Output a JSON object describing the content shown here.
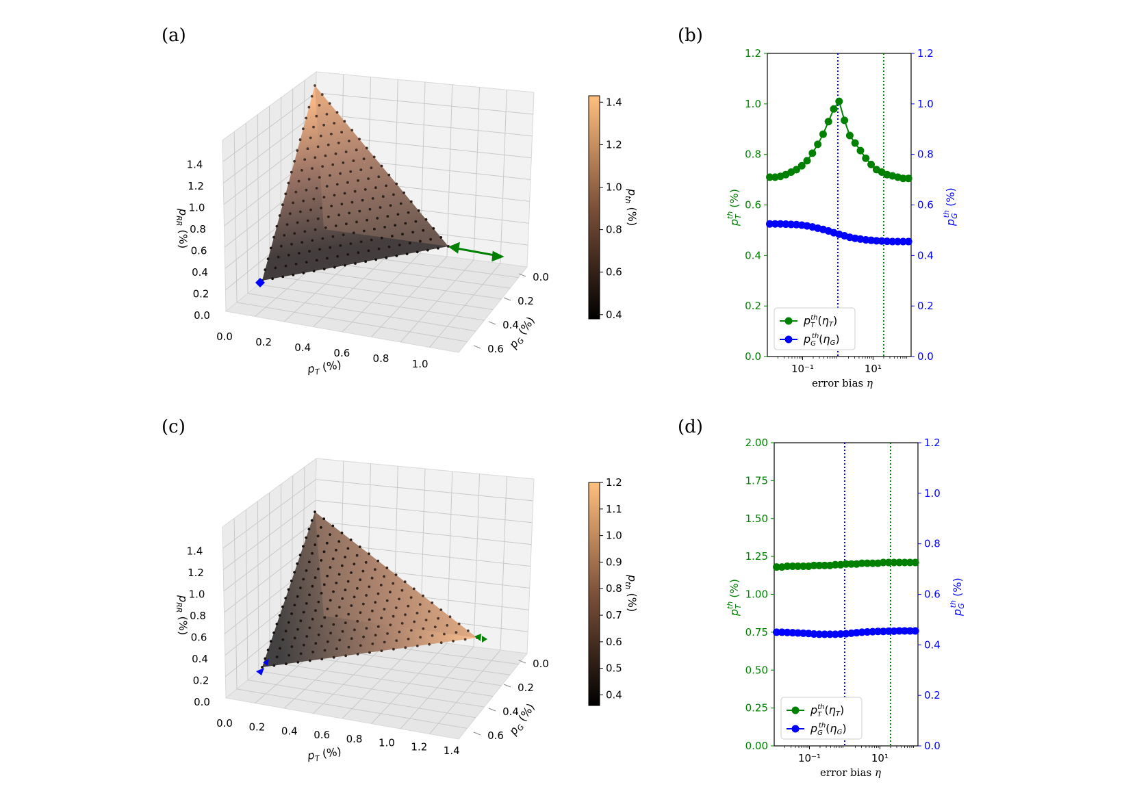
{
  "figure": {
    "panels": [
      {
        "label": "(a)"
      },
      {
        "label": "(b)"
      },
      {
        "label": "(c)"
      },
      {
        "label": "(d)"
      }
    ]
  },
  "chart_data": [
    {
      "panel": "(a)",
      "type": "scatter",
      "title": "",
      "subtype": "3d-surface-scatter",
      "xlabel": "p_T (%)",
      "ylabel": "p_G (%)",
      "zlabel": "p_RR (%)",
      "x_ticks": [
        "0.0",
        "0.2",
        "0.4",
        "0.6",
        "0.8",
        "1.0"
      ],
      "y_ticks": [
        "0.0",
        "0.2",
        "0.4",
        "0.6"
      ],
      "z_ticks": [
        "0.0",
        "0.2",
        "0.4",
        "0.6",
        "0.8",
        "1.0",
        "1.2",
        "1.4"
      ],
      "xlim": [
        0,
        1.1
      ],
      "ylim": [
        0,
        0.7
      ],
      "zlim": [
        0,
        1.55
      ],
      "vertices": {
        "p_T_intercept": [
          1.05,
          0.0,
          0.0
        ],
        "p_G_intercept": [
          0.0,
          0.45,
          0.0
        ],
        "p_RR_intercept": [
          0.0,
          0.0,
          1.45
        ]
      },
      "colorbar": {
        "label": "p_th (%)",
        "ticks": [
          "0.4",
          "0.6",
          "0.8",
          "1.0",
          "1.2",
          "1.4"
        ],
        "range": [
          0.38,
          1.43
        ],
        "colormap": "copper"
      },
      "markers": [
        {
          "name": "blue-marker",
          "color": "#0000ff"
        },
        {
          "name": "green-double-arrow",
          "color": "#008000"
        }
      ]
    },
    {
      "panel": "(b)",
      "type": "line",
      "title": "",
      "xlabel": "error bias η",
      "xscale": "log",
      "xlim": [
        0.01,
        120
      ],
      "x_ticks": [
        {
          "value": 0.1,
          "label": "10⁻¹"
        },
        {
          "value": 10,
          "label": "10¹"
        }
      ],
      "left_axis": {
        "label": "p_T^th (%)",
        "color": "#008000",
        "ylim": [
          0,
          1.2
        ],
        "ticks": [
          "0.0",
          "0.2",
          "0.4",
          "0.6",
          "0.8",
          "1.0",
          "1.2"
        ]
      },
      "right_axis": {
        "label": "p_G^th (%)",
        "color": "#0000ff",
        "ylim": [
          0,
          1.2
        ],
        "ticks": [
          "0.0",
          "0.2",
          "0.4",
          "0.6",
          "0.8",
          "1.0",
          "1.2"
        ]
      },
      "vlines": [
        {
          "x": 1.0,
          "color": "#0000ff",
          "style": "dotted"
        },
        {
          "x": 20,
          "color": "#008000",
          "style": "dotted"
        }
      ],
      "series": [
        {
          "name": "p_T^th(η_T)",
          "axis": "left",
          "color": "#008000",
          "x": [
            0.0117,
            0.0166,
            0.0235,
            0.0333,
            0.0472,
            0.0669,
            0.0948,
            0.134,
            0.19,
            0.27,
            0.382,
            0.541,
            0.767,
            1.087,
            1.54,
            2.18,
            3.09,
            4.38,
            6.21,
            8.8,
            12.5,
            17.7,
            25.0,
            35.5,
            50.3,
            71.3,
            101
          ],
          "values": [
            0.71,
            0.71,
            0.713,
            0.72,
            0.73,
            0.74,
            0.755,
            0.775,
            0.805,
            0.84,
            0.88,
            0.93,
            0.98,
            1.01,
            0.935,
            0.875,
            0.845,
            0.815,
            0.785,
            0.76,
            0.74,
            0.73,
            0.72,
            0.715,
            0.71,
            0.705,
            0.705
          ]
        },
        {
          "name": "p_G^th(η_G)",
          "axis": "right",
          "color": "#0000ff",
          "x": [
            0.0117,
            0.0166,
            0.0235,
            0.0333,
            0.0472,
            0.0669,
            0.0948,
            0.134,
            0.19,
            0.27,
            0.382,
            0.541,
            0.767,
            1.087,
            1.54,
            2.18,
            3.09,
            4.38,
            6.21,
            8.8,
            12.5,
            17.7,
            25.0,
            35.5,
            50.3,
            71.3,
            101
          ],
          "values": [
            0.525,
            0.525,
            0.525,
            0.524,
            0.523,
            0.522,
            0.52,
            0.517,
            0.513,
            0.508,
            0.503,
            0.497,
            0.49,
            0.484,
            0.478,
            0.472,
            0.468,
            0.465,
            0.462,
            0.46,
            0.458,
            0.457,
            0.456,
            0.455,
            0.455,
            0.455,
            0.455
          ]
        }
      ]
    },
    {
      "panel": "(c)",
      "type": "scatter",
      "title": "",
      "subtype": "3d-surface-scatter",
      "xlabel": "p_T (%)",
      "ylabel": "p_G (%)",
      "zlabel": "p_RR (%)",
      "x_ticks": [
        "0.0",
        "0.2",
        "0.4",
        "0.6",
        "0.8",
        "1.0",
        "1.2",
        "1.4"
      ],
      "y_ticks": [
        "0.0",
        "0.2",
        "0.4",
        "0.6"
      ],
      "z_ticks": [
        "0.0",
        "0.2",
        "0.4",
        "0.6",
        "0.8",
        "1.0",
        "1.2",
        "1.4"
      ],
      "xlim": [
        0,
        1.5
      ],
      "ylim": [
        0,
        0.7
      ],
      "zlim": [
        0,
        1.55
      ],
      "vertices": {
        "p_T_intercept": [
          1.25,
          0.0,
          0.0
        ],
        "p_G_intercept": [
          0.0,
          0.45,
          0.0
        ],
        "p_RR_intercept": [
          0.0,
          0.0,
          1.2
        ]
      },
      "colorbar": {
        "label": "p_th (%)",
        "ticks": [
          "0.4",
          "0.5",
          "0.6",
          "0.7",
          "0.8",
          "0.9",
          "1.0",
          "1.1",
          "1.2"
        ],
        "range": [
          0.36,
          1.2
        ],
        "colormap": "copper"
      },
      "markers": [
        {
          "name": "blue-marker",
          "color": "#0000ff"
        },
        {
          "name": "green-marker",
          "color": "#008000"
        }
      ]
    },
    {
      "panel": "(d)",
      "type": "line",
      "title": "",
      "xlabel": "error bias η",
      "xscale": "log",
      "xlim": [
        0.01,
        120
      ],
      "x_ticks": [
        {
          "value": 0.1,
          "label": "10⁻¹"
        },
        {
          "value": 10,
          "label": "10¹"
        }
      ],
      "left_axis": {
        "label": "p_T^th (%)",
        "color": "#008000",
        "ylim": [
          0,
          2.0
        ],
        "ticks": [
          "0.00",
          "0.25",
          "0.50",
          "0.75",
          "1.00",
          "1.25",
          "1.50",
          "1.75",
          "2.00"
        ]
      },
      "right_axis": {
        "label": "p_G^th (%)",
        "color": "#0000ff",
        "ylim": [
          0,
          1.2
        ],
        "ticks": [
          "0.0",
          "0.2",
          "0.4",
          "0.6",
          "0.8",
          "1.0",
          "1.2"
        ]
      },
      "vlines": [
        {
          "x": 1.0,
          "color": "#0000ff",
          "style": "dotted"
        },
        {
          "x": 20,
          "color": "#008000",
          "style": "dotted"
        }
      ],
      "series": [
        {
          "name": "p_T^th(η_T)",
          "axis": "left",
          "color": "#008000",
          "x": [
            0.0117,
            0.0166,
            0.0235,
            0.0333,
            0.0472,
            0.0669,
            0.0948,
            0.134,
            0.19,
            0.27,
            0.382,
            0.541,
            0.767,
            1.087,
            1.54,
            2.18,
            3.09,
            4.38,
            6.21,
            8.8,
            12.5,
            17.7,
            25.0,
            35.5,
            50.3,
            71.3,
            101
          ],
          "values": [
            1.18,
            1.18,
            1.185,
            1.185,
            1.185,
            1.185,
            1.185,
            1.19,
            1.19,
            1.19,
            1.19,
            1.195,
            1.195,
            1.2,
            1.2,
            1.2,
            1.205,
            1.205,
            1.205,
            1.205,
            1.21,
            1.21,
            1.21,
            1.21,
            1.21,
            1.21,
            1.21
          ]
        },
        {
          "name": "p_G^th(η_G)",
          "axis": "right",
          "color": "#0000ff",
          "x": [
            0.0117,
            0.0166,
            0.0235,
            0.0333,
            0.0472,
            0.0669,
            0.0948,
            0.134,
            0.19,
            0.27,
            0.382,
            0.541,
            0.767,
            1.087,
            1.54,
            2.18,
            3.09,
            4.38,
            6.21,
            8.8,
            12.5,
            17.7,
            25.0,
            35.5,
            50.3,
            71.3,
            101
          ],
          "values": [
            0.45,
            0.45,
            0.449,
            0.448,
            0.447,
            0.446,
            0.445,
            0.443,
            0.442,
            0.442,
            0.442,
            0.442,
            0.443,
            0.444,
            0.446,
            0.448,
            0.45,
            0.451,
            0.452,
            0.453,
            0.453,
            0.454,
            0.454,
            0.455,
            0.455,
            0.455,
            0.455
          ]
        }
      ]
    }
  ],
  "colors": {
    "green": "#008000",
    "blue": "#0000ff",
    "pane": "#f2f2f2",
    "grid": "#cccccc"
  }
}
